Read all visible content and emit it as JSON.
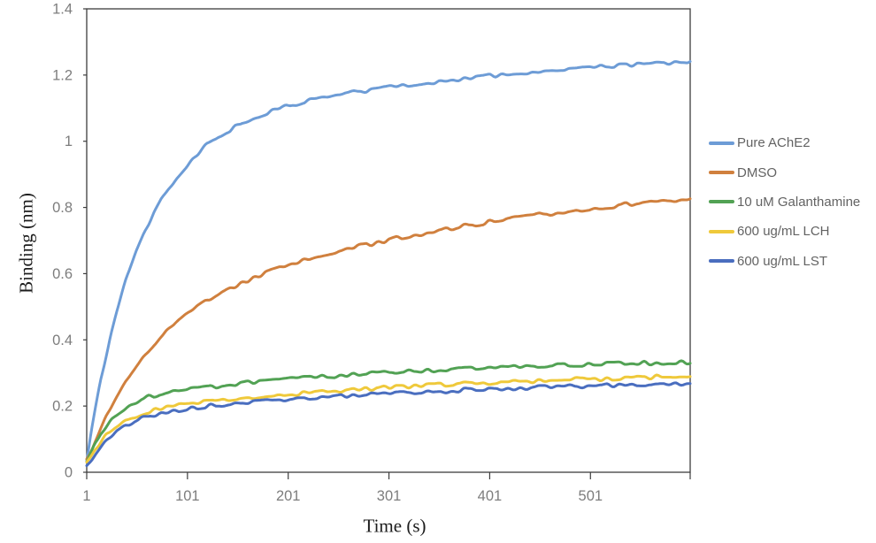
{
  "chart_data": {
    "type": "line",
    "title": "",
    "xlabel": "Time (s)",
    "ylabel": "Binding (nm)",
    "xlim": [
      1,
      600
    ],
    "ylim": [
      0,
      1.4
    ],
    "xticks": [
      1,
      101,
      201,
      301,
      401,
      501
    ],
    "yticks": [
      0,
      0.2,
      0.4,
      0.6,
      0.8,
      1,
      1.2,
      1.4
    ],
    "grid": false,
    "legend_position": "right",
    "axis_color": "#3d3d3d",
    "tick_label_color": "#7d7d7d",
    "line_width": 3,
    "noise_amplitude": 0.0065,
    "x": [
      1,
      5,
      10,
      15,
      20,
      25,
      30,
      40,
      50,
      60,
      75,
      90,
      105,
      120,
      140,
      160,
      180,
      200,
      225,
      250,
      275,
      300,
      325,
      350,
      375,
      400,
      425,
      450,
      475,
      500,
      525,
      550,
      575,
      600
    ],
    "series": [
      {
        "name": "Pure AChE2",
        "color": "#6D9CD6",
        "values": [
          0.04,
          0.115,
          0.2,
          0.28,
          0.35,
          0.415,
          0.475,
          0.58,
          0.663,
          0.735,
          0.822,
          0.888,
          0.938,
          0.99,
          1.03,
          1.06,
          1.085,
          1.105,
          1.125,
          1.14,
          1.152,
          1.163,
          1.172,
          1.181,
          1.189,
          1.197,
          1.204,
          1.21,
          1.216,
          1.222,
          1.227,
          1.232,
          1.237,
          1.242
        ]
      },
      {
        "name": "DMSO",
        "color": "#D0803E",
        "values": [
          0.035,
          0.055,
          0.093,
          0.13,
          0.164,
          0.195,
          0.225,
          0.277,
          0.323,
          0.362,
          0.412,
          0.454,
          0.489,
          0.518,
          0.551,
          0.579,
          0.603,
          0.624,
          0.646,
          0.667,
          0.685,
          0.701,
          0.716,
          0.73,
          0.743,
          0.755,
          0.767,
          0.777,
          0.787,
          0.796,
          0.805,
          0.813,
          0.82,
          0.827
        ]
      },
      {
        "name": "10 uM Galanthamine",
        "color": "#52A254",
        "values": [
          0.03,
          0.055,
          0.09,
          0.118,
          0.14,
          0.159,
          0.174,
          0.197,
          0.213,
          0.225,
          0.236,
          0.245,
          0.252,
          0.257,
          0.264,
          0.27,
          0.275,
          0.28,
          0.286,
          0.291,
          0.296,
          0.301,
          0.305,
          0.308,
          0.312,
          0.315,
          0.318,
          0.321,
          0.323,
          0.326,
          0.328,
          0.33,
          0.331,
          0.333
        ]
      },
      {
        "name": "600 ug/mL LCH",
        "color": "#EFC93B",
        "values": [
          0.025,
          0.042,
          0.068,
          0.09,
          0.109,
          0.124,
          0.137,
          0.157,
          0.171,
          0.182,
          0.194,
          0.202,
          0.209,
          0.215,
          0.221,
          0.226,
          0.231,
          0.236,
          0.241,
          0.247,
          0.251,
          0.256,
          0.26,
          0.264,
          0.267,
          0.27,
          0.273,
          0.276,
          0.279,
          0.281,
          0.284,
          0.286,
          0.288,
          0.29
        ]
      },
      {
        "name": "600 ug/mL LST",
        "color": "#4A6EBF",
        "values": [
          0.02,
          0.035,
          0.058,
          0.078,
          0.095,
          0.109,
          0.121,
          0.14,
          0.155,
          0.166,
          0.178,
          0.187,
          0.194,
          0.199,
          0.205,
          0.21,
          0.215,
          0.22,
          0.225,
          0.229,
          0.234,
          0.238,
          0.241,
          0.245,
          0.248,
          0.251,
          0.254,
          0.256,
          0.258,
          0.26,
          0.262,
          0.264,
          0.266,
          0.268
        ]
      }
    ]
  }
}
